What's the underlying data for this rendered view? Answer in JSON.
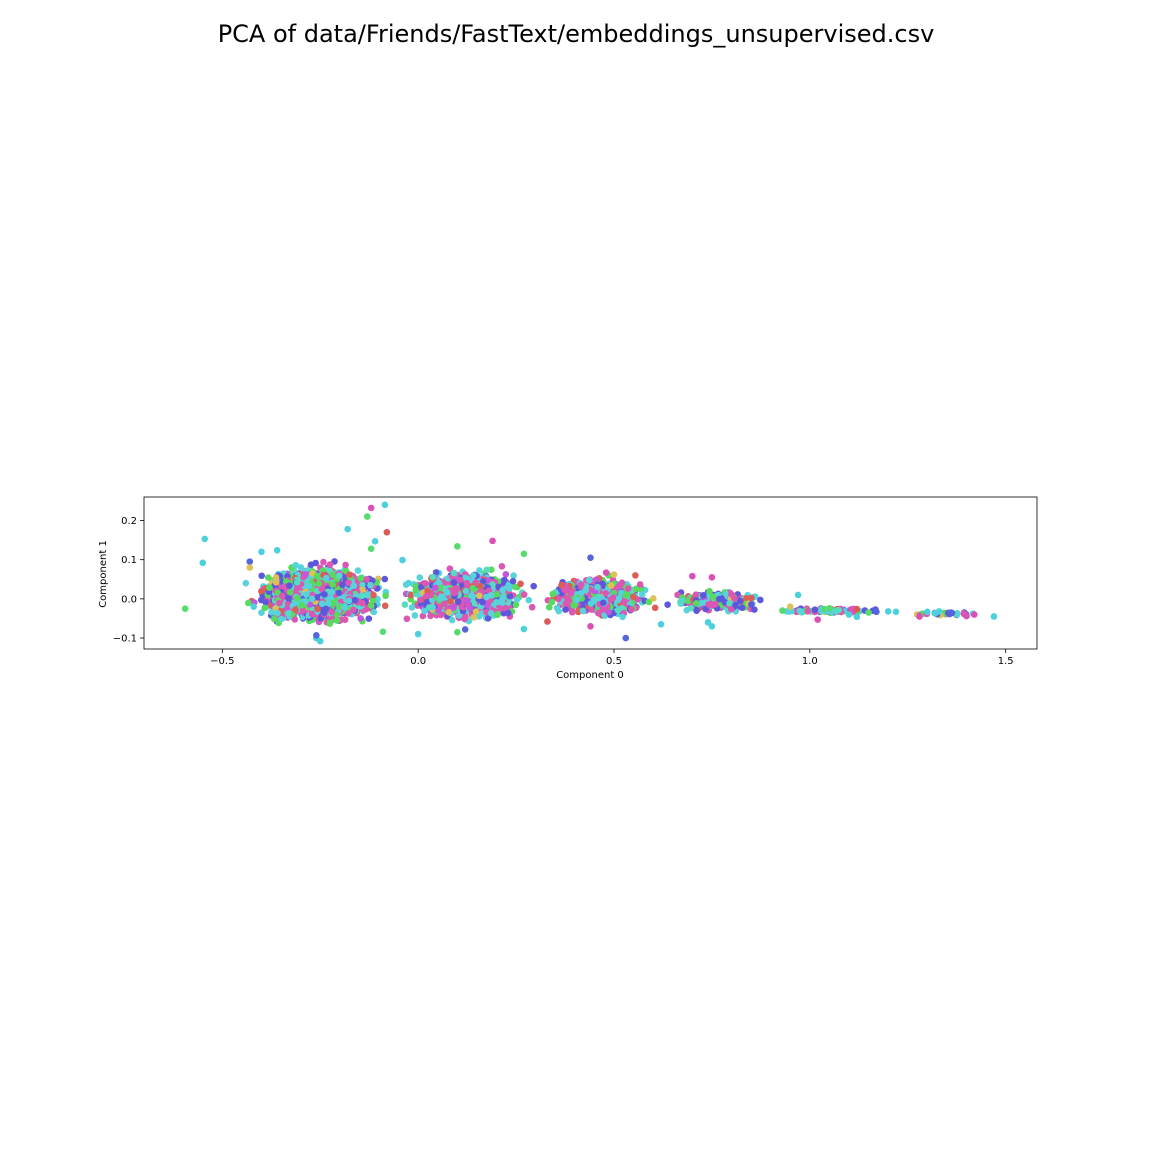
{
  "chart_data": {
    "type": "scatter",
    "title": "PCA of data/Friends/FastText/embeddings_unsupervised.csv",
    "xlabel": "Component 0",
    "ylabel": "Component 1",
    "xlim": [
      -0.7,
      1.58
    ],
    "ylim": [
      -0.128,
      0.26
    ],
    "xticks": [
      -0.5,
      0.0,
      0.5,
      1.0,
      1.5
    ],
    "xtick_labels": [
      "−0.5",
      "0.0",
      "0.5",
      "1.0",
      "1.5"
    ],
    "yticks": [
      -0.1,
      0.0,
      0.1,
      0.2
    ],
    "ytick_labels": [
      "−0.1",
      "0.0",
      "0.1",
      "0.2"
    ],
    "grid": false,
    "legend": "none",
    "palette": [
      "#db5f57",
      "#dbc257",
      "#57db5f",
      "#57dbc2",
      "#57d3db",
      "#5f57db",
      "#c257db",
      "#db57b2"
    ],
    "series": [
      {
        "color": "#4bd0dc",
        "values": [
          [
            -0.545,
            0.153
          ],
          [
            -0.55,
            0.092
          ],
          [
            -0.085,
            0.24
          ],
          [
            -0.4,
            0.12
          ],
          [
            -0.36,
            0.124
          ],
          [
            -0.18,
            0.178
          ],
          [
            -0.11,
            0.147
          ],
          [
            -0.04,
            0.099
          ],
          [
            0.0,
            -0.09
          ],
          [
            0.27,
            -0.077
          ],
          [
            0.62,
            -0.065
          ],
          [
            0.74,
            -0.06
          ],
          [
            0.75,
            -0.07
          ],
          [
            0.97,
            0.01
          ],
          [
            1.1,
            -0.04
          ],
          [
            1.12,
            -0.046
          ],
          [
            1.2,
            -0.032
          ],
          [
            1.22,
            -0.033
          ],
          [
            1.3,
            -0.033
          ],
          [
            1.32,
            -0.037
          ],
          [
            1.33,
            -0.032
          ],
          [
            1.47,
            -0.045
          ],
          [
            -0.42,
            -0.02
          ],
          [
            -0.26,
            -0.1
          ],
          [
            -0.25,
            -0.108
          ]
        ]
      },
      {
        "color": "#56dc6e",
        "values": [
          [
            -0.595,
            -0.025
          ],
          [
            -0.13,
            0.21
          ],
          [
            -0.12,
            0.128
          ],
          [
            0.1,
            0.134
          ],
          [
            0.27,
            0.115
          ],
          [
            0.1,
            -0.085
          ],
          [
            -0.09,
            -0.084
          ],
          [
            1.05,
            -0.024
          ],
          [
            0.93,
            -0.03
          ],
          [
            1.15,
            -0.035
          ]
        ]
      },
      {
        "color": "#dc4fb8",
        "values": [
          [
            -0.12,
            0.232
          ],
          [
            0.19,
            0.148
          ],
          [
            0.48,
            0.067
          ],
          [
            0.7,
            0.058
          ],
          [
            0.75,
            0.055
          ],
          [
            1.02,
            -0.053
          ],
          [
            1.28,
            -0.045
          ],
          [
            1.4,
            -0.044
          ],
          [
            1.42,
            -0.04
          ],
          [
            0.44,
            -0.07
          ]
        ]
      },
      {
        "color": "#5565dc",
        "values": [
          [
            -0.43,
            0.095
          ],
          [
            0.44,
            0.105
          ],
          [
            0.53,
            -0.1
          ],
          [
            -0.26,
            -0.093
          ],
          [
            0.12,
            -0.078
          ],
          [
            1.17,
            -0.033
          ],
          [
            1.36,
            -0.035
          ]
        ]
      },
      {
        "color": "#dc5a55",
        "values": [
          [
            -0.08,
            0.17
          ],
          [
            1.12,
            -0.026
          ],
          [
            0.33,
            -0.058
          ]
        ]
      },
      {
        "color": "#dcc257",
        "values": [
          [
            -0.43,
            0.08
          ],
          [
            0.5,
            0.062
          ],
          [
            0.95,
            -0.02
          ]
        ]
      }
    ],
    "clusters": [
      {
        "x_min": -0.44,
        "x_max": -0.06,
        "y_min": -0.078,
        "y_max": 0.1,
        "n": 1900
      },
      {
        "x_min": -0.06,
        "x_max": 0.3,
        "y_min": -0.07,
        "y_max": 0.09,
        "n": 1300
      },
      {
        "x_min": 0.3,
        "x_max": 0.62,
        "y_min": -0.055,
        "y_max": 0.065,
        "n": 700
      },
      {
        "x_min": 0.62,
        "x_max": 0.9,
        "y_min": -0.04,
        "y_max": 0.03,
        "n": 280
      },
      {
        "x_min": 0.9,
        "x_max": 1.22,
        "y_min": -0.038,
        "y_max": -0.022,
        "n": 90
      },
      {
        "x_min": 1.22,
        "x_max": 1.47,
        "y_min": -0.043,
        "y_max": -0.033,
        "n": 25
      }
    ]
  }
}
